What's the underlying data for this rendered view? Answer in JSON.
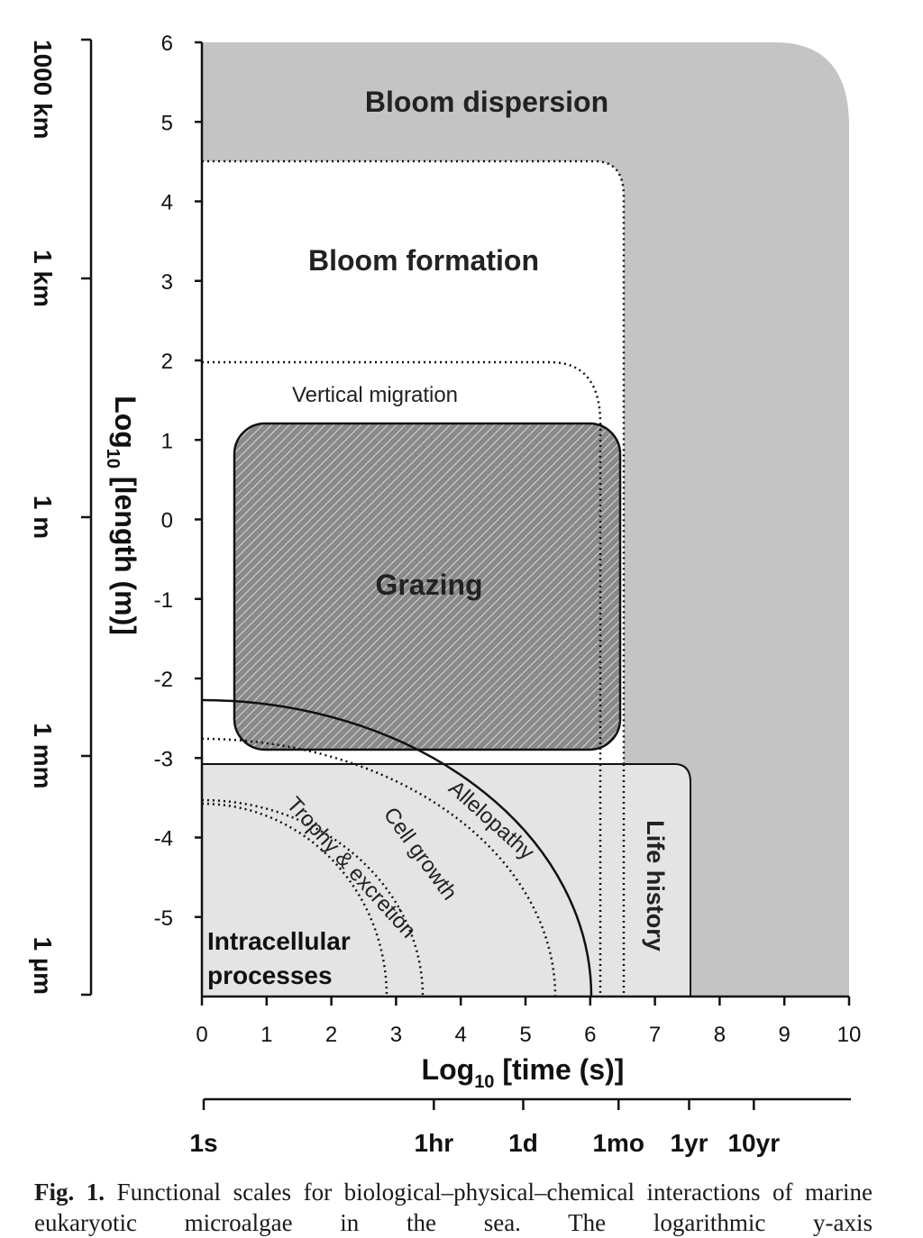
{
  "figure": {
    "caption_label": "Fig. 1.",
    "caption_lines": [
      "Functional scales for biological–physical–chemical interactions",
      "of marine eukaryotic microalgae in the sea. The logarithmic y-axis"
    ]
  },
  "chart_data": {
    "type": "diagram",
    "title": "",
    "xlabel_main": "Log",
    "xlabel_sub": "10",
    "xlabel_rest": " [time (s)]",
    "ylabel_main": "Log",
    "ylabel_sub": "10",
    "ylabel_rest": " [length (m)]",
    "xlim": [
      0,
      10
    ],
    "ylim": [
      -6,
      6
    ],
    "x_ticks": [
      "0",
      "1",
      "2",
      "3",
      "4",
      "5",
      "6",
      "7",
      "8",
      "9",
      "10"
    ],
    "y_ticks": [
      "6",
      "5",
      "4",
      "3",
      "2",
      "1",
      "0",
      "-1",
      "-2",
      "-3",
      "-4",
      "-5"
    ],
    "secondary_x_axis": [
      {
        "label": "1s",
        "log_value": 0
      },
      {
        "label": "1hr",
        "log_value": 3.556
      },
      {
        "label": "1d",
        "log_value": 4.937
      },
      {
        "label": "1mo",
        "log_value": 6.41
      },
      {
        "label": "1yr",
        "log_value": 7.5
      },
      {
        "label": "10yr",
        "log_value": 8.5
      }
    ],
    "secondary_y_axis": [
      {
        "label": "1000 km",
        "log_value": 6
      },
      {
        "label": "1 km",
        "log_value": 3
      },
      {
        "label": "1 m",
        "log_value": 0
      },
      {
        "label": "1 mm",
        "log_value": -3
      },
      {
        "label": "1 µm",
        "log_value": -6
      }
    ],
    "regions": [
      {
        "name": "Bloom dispersion",
        "time_range": [
          0,
          10
        ],
        "length_range": [
          -6,
          6
        ],
        "style": "gray-fill"
      },
      {
        "name": "Bloom formation",
        "time_range": [
          0,
          6.6
        ],
        "length_range": [
          -6,
          4.5
        ],
        "style": "white-fill dotted"
      },
      {
        "name": "Vertical migration",
        "time_range": [
          0,
          6.2
        ],
        "length_range": [
          -6,
          1.95
        ],
        "style": "dotted"
      },
      {
        "name": "Grazing",
        "time_range": [
          0.5,
          6.5
        ],
        "length_range": [
          -2.95,
          1.15
        ],
        "style": "hatched"
      },
      {
        "name": "Life history",
        "time_range": [
          0,
          7.55
        ],
        "length_range": [
          -6,
          -3.1
        ],
        "style": "light-gray-fill"
      },
      {
        "name": "Allelopathy",
        "radius_time": 6.1,
        "radius_length": 3.65,
        "style": "solid-arc"
      },
      {
        "name": "Cell growth",
        "radius_time": 5.5,
        "radius_length": 3.15,
        "style": "dotted-arc"
      },
      {
        "name": "Trophy & excretion",
        "radius_time": 3.4,
        "radius_length": 2.45,
        "style": "dotted-arc"
      },
      {
        "name": "Intracellular processes",
        "radius_time": 2.85,
        "radius_length": 2.4,
        "style": "dotted-arc"
      }
    ],
    "region_labels": {
      "bloom_dispersion": "Bloom dispersion",
      "bloom_formation": "Bloom formation",
      "vertical_migration": "Vertical migration",
      "grazing": "Grazing",
      "life_history": "Life history",
      "allelopathy": "Allelopathy",
      "cell_growth": "Cell growth",
      "trophy": "Trophy & excretion",
      "intracellular_1": "Intracellular",
      "intracellular_2": "processes"
    }
  }
}
